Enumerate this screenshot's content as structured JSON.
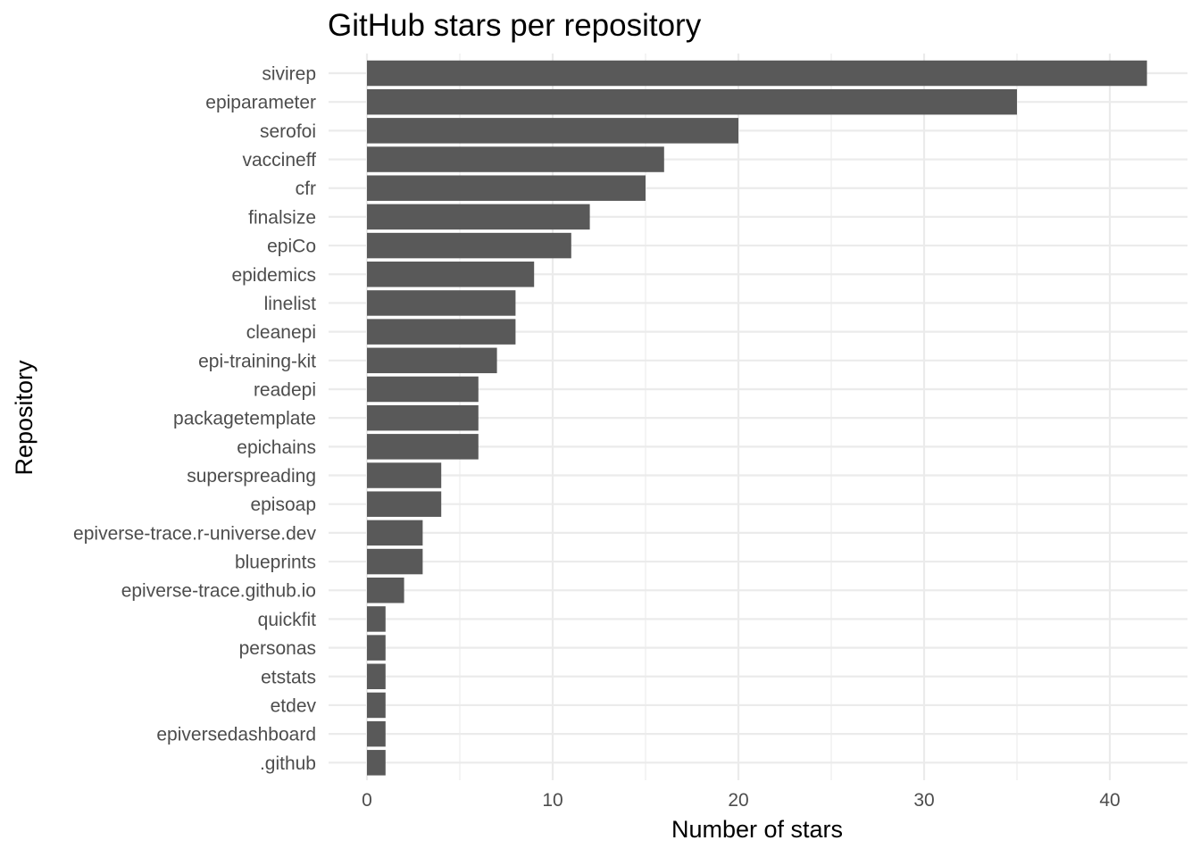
{
  "chart_data": {
    "type": "bar",
    "orientation": "horizontal",
    "title": "GitHub stars per repository",
    "xlabel": "Number of stars",
    "ylabel": "Repository",
    "xlim": [
      0,
      42
    ],
    "x_ticks": [
      0,
      10,
      20,
      30,
      40
    ],
    "grid": true,
    "legend": "none",
    "bar_color": "#595959",
    "categories": [
      "sivirep",
      "epiparameter",
      "serofoi",
      "vaccineff",
      "cfr",
      "finalsize",
      "epiCo",
      "epidemics",
      "linelist",
      "cleanepi",
      "epi-training-kit",
      "readepi",
      "packagetemplate",
      "epichains",
      "superspreading",
      "episoap",
      "epiverse-trace.r-universe.dev",
      "blueprints",
      "epiverse-trace.github.io",
      "quickfit",
      "personas",
      "etstats",
      "etdev",
      "epiversedashboard",
      ".github"
    ],
    "values": [
      42,
      35,
      20,
      16,
      15,
      12,
      11,
      9,
      8,
      8,
      7,
      6,
      6,
      6,
      4,
      4,
      3,
      3,
      2,
      1,
      1,
      1,
      1,
      1,
      1
    ]
  }
}
